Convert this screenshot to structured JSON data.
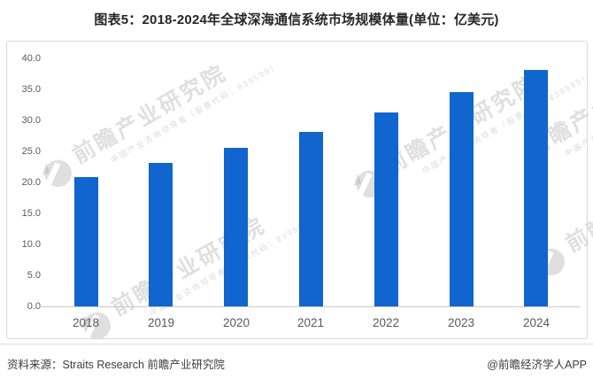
{
  "page": {
    "title": "图表5：2018-2024年全球深海通信系统市场规模体量(单位：亿美元)"
  },
  "chart_data": {
    "type": "bar",
    "title": "图表5：2018-2024年全球深海通信系统市场规模体量(单位：亿美元)",
    "categories": [
      "2018",
      "2019",
      "2020",
      "2021",
      "2022",
      "2023",
      "2024"
    ],
    "values": [
      20.8,
      23.2,
      25.5,
      28.2,
      31.3,
      34.6,
      38.2
    ],
    "unit": "亿美元",
    "xlabel": "",
    "ylabel": "",
    "ylim": [
      0,
      40
    ],
    "ytick_step": 5,
    "ytick_labels": [
      "0.0",
      "5.0",
      "10.0",
      "15.0",
      "20.0",
      "25.0",
      "30.0",
      "35.0",
      "40.0"
    ],
    "grid": false,
    "legend": null,
    "bar_color": "#1065CF",
    "axis_line_color": "#c9c9c9",
    "tick_label_color": "#595959"
  },
  "footer": {
    "source": "资料来源：Straits Research 前瞻产业研究院",
    "credit": "@前瞻经济学人APP"
  },
  "watermark": {
    "main_text": "前瞻产业研究院",
    "small_text": "中国产业咨询领导者（股票代码：839599）"
  }
}
